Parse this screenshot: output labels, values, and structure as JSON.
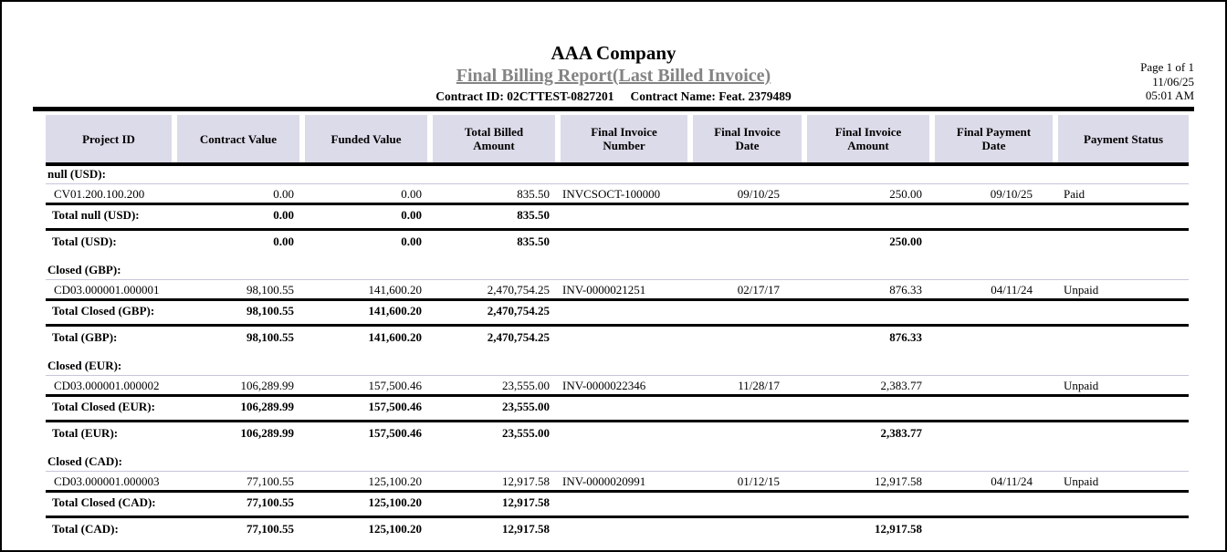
{
  "report": {
    "company": "AAA Company",
    "title": "Final Billing Report(Last Billed Invoice)",
    "contract_id": "Contract ID: 02CTTEST-0827201",
    "contract_name": "Contract Name: Feat. 2379489",
    "page_info": {
      "page": "Page 1 of 1",
      "date": "11/06/25",
      "time": "05:01 AM"
    }
  },
  "colors": {
    "header_bg": "#dcdbe9",
    "title_gray": "#848484",
    "thin_divider": "#c6c6da",
    "rule": "#000000"
  },
  "table": {
    "columns": [
      "Project ID",
      "Contract Value",
      "Funded Value",
      "Total Billed Amount",
      "Final Invoice Number",
      "Final Invoice Date",
      "Final Invoice Amount",
      "Final Payment Date",
      "Payment Status"
    ],
    "groups": [
      {
        "label": "null (USD):",
        "row": [
          "CV01.200.100.200",
          "0.00",
          "0.00",
          "835.50",
          "INVCSOCT-100000",
          "09/10/25",
          "250.00",
          "09/10/25",
          "Paid"
        ],
        "group_total": [
          "Total null (USD):",
          "0.00",
          "0.00",
          "835.50",
          "",
          "",
          "",
          "",
          ""
        ],
        "currency_total": [
          "Total (USD):",
          "0.00",
          "0.00",
          "835.50",
          "",
          "",
          "250.00",
          "",
          ""
        ]
      },
      {
        "label": "Closed (GBP):",
        "row": [
          "CD03.000001.000001",
          "98,100.55",
          "141,600.20",
          "2,470,754.25",
          "INV-0000021251",
          "02/17/17",
          "876.33",
          "04/11/24",
          "Unpaid"
        ],
        "group_total": [
          "Total Closed (GBP):",
          "98,100.55",
          "141,600.20",
          "2,470,754.25",
          "",
          "",
          "",
          "",
          ""
        ],
        "currency_total": [
          "Total (GBP):",
          "98,100.55",
          "141,600.20",
          "2,470,754.25",
          "",
          "",
          "876.33",
          "",
          ""
        ]
      },
      {
        "label": "Closed (EUR):",
        "row": [
          "CD03.000001.000002",
          "106,289.99",
          "157,500.46",
          "23,555.00",
          "INV-0000022346",
          "11/28/17",
          "2,383.77",
          "",
          "Unpaid"
        ],
        "group_total": [
          "Total Closed (EUR):",
          "106,289.99",
          "157,500.46",
          "23,555.00",
          "",
          "",
          "",
          "",
          ""
        ],
        "currency_total": [
          "Total (EUR):",
          "106,289.99",
          "157,500.46",
          "23,555.00",
          "",
          "",
          "2,383.77",
          "",
          ""
        ]
      },
      {
        "label": "Closed (CAD):",
        "row": [
          "CD03.000001.000003",
          "77,100.55",
          "125,100.20",
          "12,917.58",
          "INV-0000020991",
          "01/12/15",
          "12,917.58",
          "04/11/24",
          "Unpaid"
        ],
        "group_total": [
          "Total Closed (CAD):",
          "77,100.55",
          "125,100.20",
          "12,917.58",
          "",
          "",
          "",
          "",
          ""
        ],
        "currency_total": [
          "Total (CAD):",
          "77,100.55",
          "125,100.20",
          "12,917.58",
          "",
          "",
          "12,917.58",
          "",
          ""
        ]
      }
    ]
  }
}
